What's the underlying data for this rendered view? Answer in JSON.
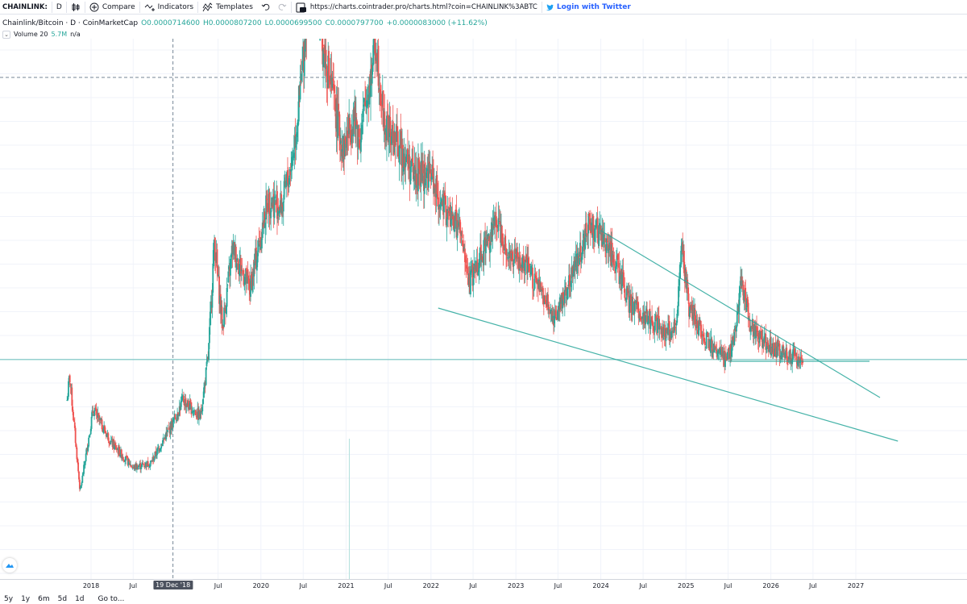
{
  "toolbar": {
    "symbol": "CHAINLINK:",
    "interval": "D",
    "compare_label": "Compare",
    "indicators_label": "Indicators",
    "templates_label": "Templates",
    "url": "https://charts.cointrader.pro/charts.html?coin=CHAINLINK%3ABTC",
    "twitter_label": "Login with Twitter",
    "icons": [
      "bar-style-icon",
      "plus-circle-icon",
      "indicators-icon",
      "templates-icon",
      "undo-icon",
      "redo-icon",
      "snapshot-icon",
      "twitter-icon"
    ]
  },
  "legend": {
    "title": "Chainlink/Bitcoin · D · CoinMarketCap",
    "open": "O0.0000714600",
    "high": "H0.0000807200",
    "low": "L0.0000699500",
    "close": "C0.0000797700",
    "change": "+0.0000083000 (+11.62%)",
    "volume_label": "Volume 20",
    "volume_value": "5.7M",
    "volume_na": "n/a",
    "up_color": "#26a69a",
    "down_color": "#ef5350"
  },
  "time_axis": {
    "ticks": [
      "2018",
      "Jul",
      "Jul",
      "2020",
      "Jul",
      "2021",
      "Jul",
      "2022",
      "Jul",
      "2023",
      "Jul",
      "2024",
      "Jul",
      "2025",
      "Jul",
      "2026",
      "Jul",
      "2027"
    ],
    "crosshair_label": "19 Dec '18"
  },
  "bottom_bar": {
    "ranges": [
      "5y",
      "1y",
      "6m",
      "5d",
      "1d"
    ],
    "goto_label": "Go to..."
  },
  "chart_data": {
    "type": "candlestick",
    "title": "Chainlink/Bitcoin · D · CoinMarketCap",
    "x_range": [
      "2017-09-01",
      "2027-07-01"
    ],
    "price_trend": [
      [
        "2017-09-20",
        0.62
      ],
      [
        "2017-10-01",
        0.72
      ],
      [
        "2017-11-15",
        0.24
      ],
      [
        "2018-01-10",
        0.58
      ],
      [
        "2018-04-01",
        0.44
      ],
      [
        "2018-07-01",
        0.34
      ],
      [
        "2018-09-15",
        0.36
      ],
      [
        "2018-12-15",
        0.52
      ],
      [
        "2019-02-01",
        0.62
      ],
      [
        "2019-04-15",
        0.55
      ],
      [
        "2019-05-20",
        0.8
      ],
      [
        "2019-06-15",
        1.28
      ],
      [
        "2019-07-20",
        0.92
      ],
      [
        "2019-09-01",
        1.25
      ],
      [
        "2019-11-15",
        1.08
      ],
      [
        "2020-02-01",
        1.45
      ],
      [
        "2020-04-01",
        1.42
      ],
      [
        "2020-05-15",
        1.62
      ],
      [
        "2020-06-20",
        1.9
      ],
      [
        "2020-08-15",
        2.6
      ],
      [
        "2020-09-10",
        2.15
      ],
      [
        "2020-11-01",
        1.9
      ],
      [
        "2020-12-20",
        1.65
      ],
      [
        "2021-02-01",
        1.8
      ],
      [
        "2021-03-01",
        1.7
      ],
      [
        "2021-05-10",
        2.1
      ],
      [
        "2021-06-15",
        1.75
      ],
      [
        "2021-09-01",
        1.65
      ],
      [
        "2021-10-20",
        1.55
      ],
      [
        "2022-01-01",
        1.55
      ],
      [
        "2022-02-15",
        1.42
      ],
      [
        "2022-05-01",
        1.33
      ],
      [
        "2022-06-15",
        1.1
      ],
      [
        "2022-08-01",
        1.22
      ],
      [
        "2022-10-15",
        1.36
      ],
      [
        "2022-12-01",
        1.22
      ],
      [
        "2023-03-01",
        1.15
      ],
      [
        "2023-06-15",
        0.96
      ],
      [
        "2023-08-15",
        1.1
      ],
      [
        "2023-11-15",
        1.35
      ],
      [
        "2024-01-20",
        1.27
      ],
      [
        "2024-03-01",
        1.2
      ],
      [
        "2024-05-01",
        1.02
      ],
      [
        "2024-08-01",
        0.95
      ],
      [
        "2024-10-15",
        0.9
      ],
      [
        "2024-11-20",
        0.92
      ],
      [
        "2024-12-15",
        1.25
      ],
      [
        "2025-01-15",
        1.0
      ],
      [
        "2025-03-01",
        0.92
      ],
      [
        "2025-05-01",
        0.82
      ],
      [
        "2025-06-25",
        0.79
      ],
      [
        "2025-08-01",
        0.88
      ],
      [
        "2025-08-25",
        1.13
      ],
      [
        "2025-10-01",
        0.94
      ],
      [
        "2025-12-01",
        0.86
      ],
      [
        "2026-03-01",
        0.81
      ],
      [
        "2026-05-20",
        0.8
      ]
    ],
    "trend_lines": [
      {
        "name": "upper",
        "from": [
          "2024-01-01",
          1.32
        ],
        "to": [
          "2027-04-15",
          0.63
        ]
      },
      {
        "name": "lower",
        "from": [
          "2022-02-01",
          1.0
        ],
        "to": [
          "2027-07-01",
          0.45
        ]
      },
      {
        "name": "flat",
        "from": [
          "2025-07-01",
          0.78
        ],
        "to": [
          "2027-03-01",
          0.78
        ]
      }
    ],
    "horizontal_line": {
      "price_ref": 0.797,
      "color": "#26a69a"
    }
  }
}
